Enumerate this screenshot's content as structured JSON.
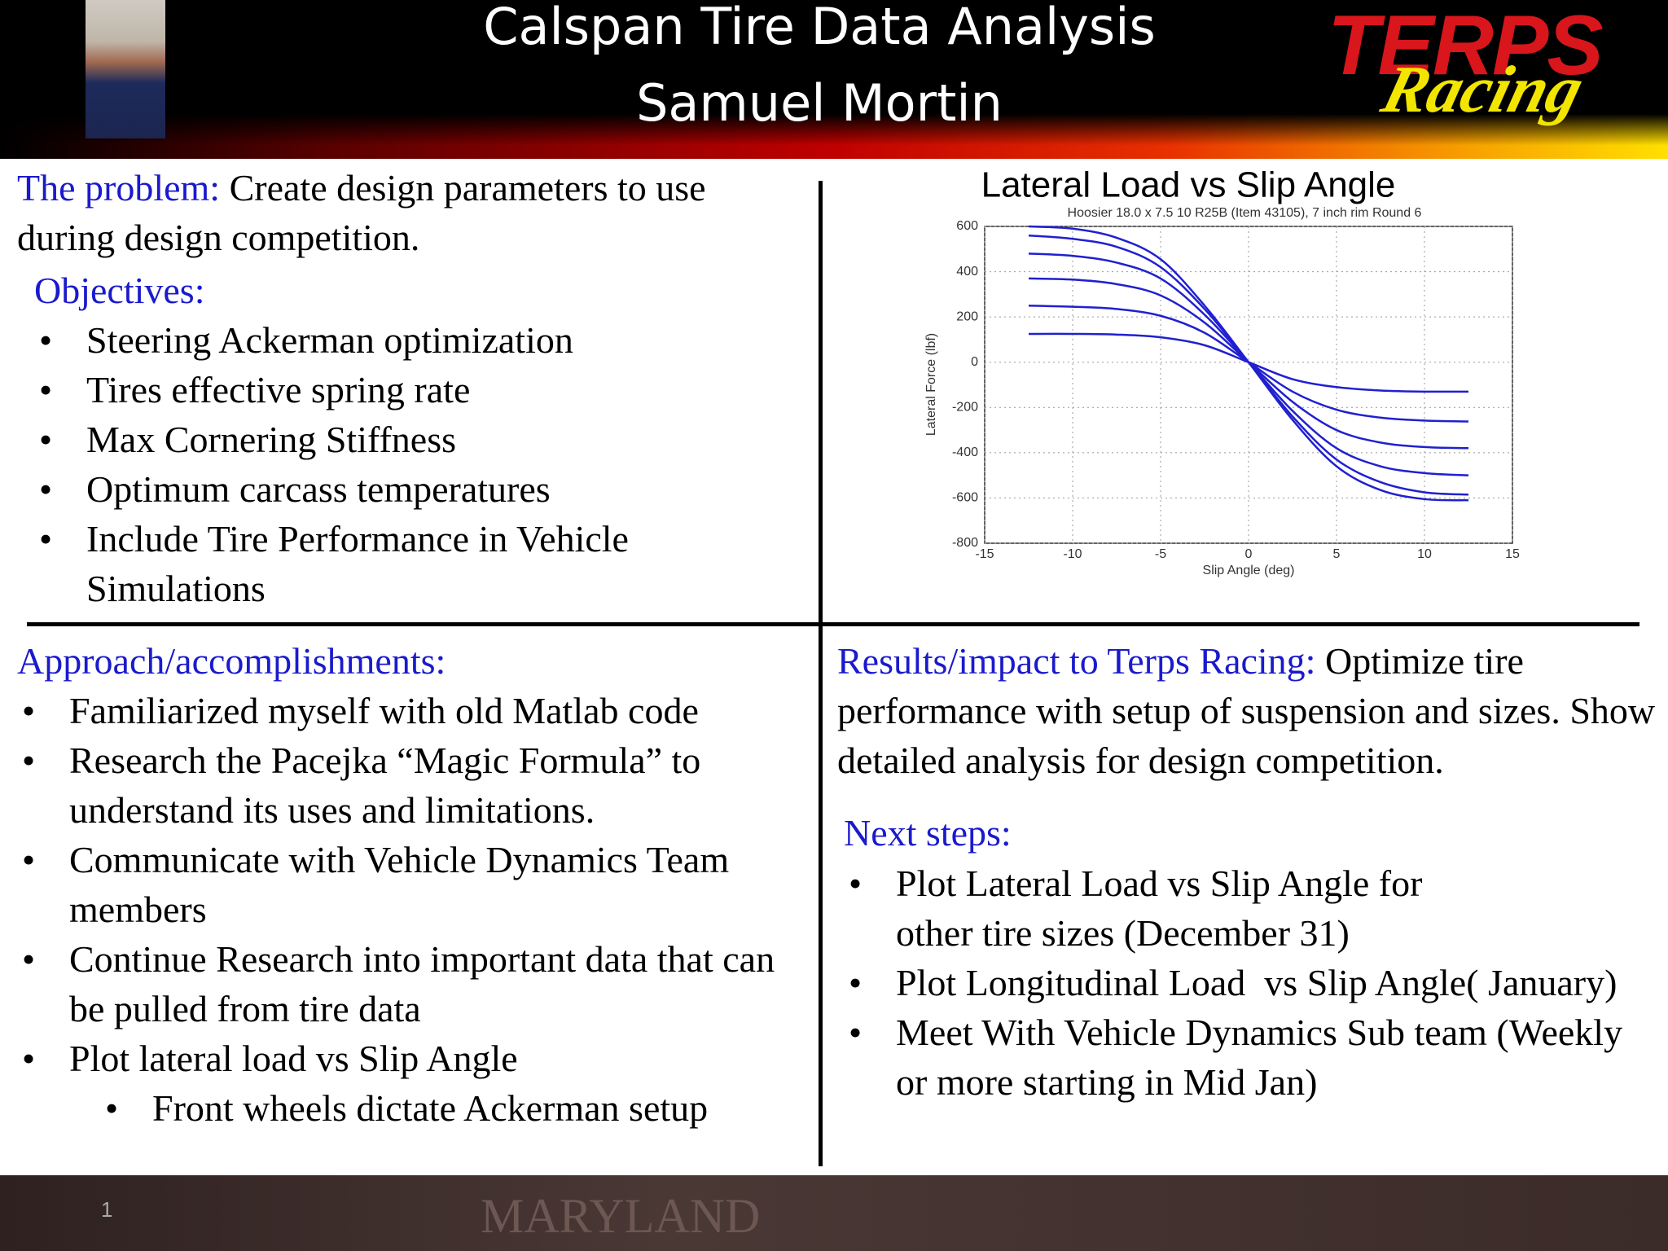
{
  "header": {
    "title": "Calspan Tire Data Analysis",
    "name": "Samuel Mortin"
  },
  "logo": {
    "word": "TERPS",
    "script": "Racing"
  },
  "problem": {
    "label": "The problem:",
    "text": " Create design parameters to use during design competition."
  },
  "objectives": {
    "label": "Objectives:",
    "items": [
      "Steering Ackerman optimization",
      "Tires effective spring rate",
      "Max Cornering Stiffness",
      "Optimum carcass temperatures",
      "Include Tire Performance in Vehicle Simulations"
    ]
  },
  "approach": {
    "label": "Approach/accomplishments:",
    "items": [
      "Familiarized myself with old Matlab code",
      "Research the Pacejka “Magic Formula” to understand its uses and limitations.",
      "Communicate with Vehicle Dynamics Team members",
      "Continue Research into important data that can be pulled from tire data",
      "Plot lateral load vs Slip Angle"
    ],
    "subitems": [
      "Front wheels dictate Ackerman setup"
    ]
  },
  "results": {
    "label": "Results/impact to Terps Racing:",
    "text": " Optimize tire performance with setup of suspension and sizes. Show detailed analysis for design competition."
  },
  "next_steps": {
    "label": "Next steps:",
    "items": [
      "Plot Lateral Load vs Slip Angle for\nother tire sizes (December 31)",
      "Plot Longitudinal Load  vs Slip Angle( January)",
      "Meet With Vehicle Dynamics Sub team (Weekly or more starting in Mid Jan)"
    ]
  },
  "chart_data": {
    "type": "line",
    "title": "Lateral Load vs Slip Angle",
    "subtitle": "Hoosier 18.0 x 7.5 10 R25B  (Item 43105), 7 inch rim Round 6",
    "x_label": "Slip Angle (deg)",
    "y_label": "Lateral Force (lbf)",
    "x": [
      -12.5,
      -10,
      -7.5,
      -5,
      -2.5,
      0,
      2.5,
      5,
      7.5,
      10,
      12.5
    ],
    "series": [
      {
        "color": "#2020d0",
        "values": [
          125,
          125,
          122,
          110,
          75,
          0,
          -75,
          -110,
          -125,
          -130,
          -130
        ]
      },
      {
        "color": "#2020d0",
        "values": [
          250,
          245,
          235,
          205,
          130,
          0,
          -130,
          -210,
          -245,
          -258,
          -262
        ]
      },
      {
        "color": "#2020d0",
        "values": [
          370,
          365,
          345,
          295,
          175,
          0,
          -175,
          -300,
          -355,
          -375,
          -380
        ]
      },
      {
        "color": "#2020d0",
        "values": [
          480,
          470,
          440,
          370,
          210,
          0,
          -215,
          -380,
          -460,
          -490,
          -500
        ]
      },
      {
        "color": "#2020d0",
        "values": [
          560,
          545,
          510,
          420,
          235,
          0,
          -240,
          -430,
          -530,
          -575,
          -585
        ]
      },
      {
        "color": "#2020d0",
        "values": [
          600,
          590,
          550,
          455,
          250,
          0,
          -255,
          -460,
          -565,
          -605,
          -610
        ]
      }
    ],
    "xlim": [
      -15,
      15
    ],
    "xticks": [
      -15,
      -10,
      -5,
      0,
      5,
      10,
      15
    ],
    "ylim": [
      -800,
      600
    ],
    "yticks": [
      -800,
      -600,
      -400,
      -200,
      0,
      200,
      400,
      600
    ],
    "grid": true
  },
  "footer": {
    "page_number": "1",
    "watermark": "MARYLAND"
  }
}
